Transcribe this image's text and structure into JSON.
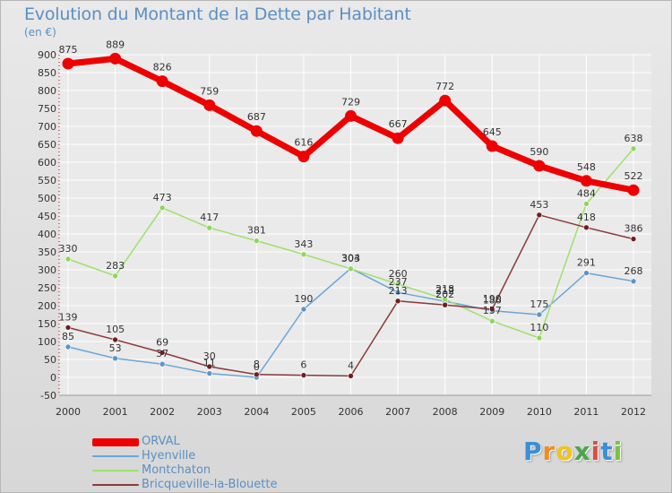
{
  "header": {
    "title": "Evolution du Montant de la Dette par Habitant",
    "unit": "(en €)"
  },
  "logo_text": "Proxiti",
  "chart_data": {
    "type": "line",
    "title": "Evolution du Montant de la Dette par Habitant",
    "subtitle": "(en €)",
    "xlabel": "",
    "ylabel": "",
    "x": [
      "2000",
      "2001",
      "2002",
      "2003",
      "2004",
      "2005",
      "2006",
      "2007",
      "2008",
      "2009",
      "2010",
      "2011",
      "2012"
    ],
    "ylim": [
      -50,
      900
    ],
    "yticks": [
      -50,
      0,
      50,
      100,
      150,
      200,
      250,
      300,
      350,
      400,
      450,
      500,
      550,
      600,
      650,
      700,
      750,
      800,
      850,
      900
    ],
    "grid": true,
    "legend_position": "bottom-left",
    "series": [
      {
        "name": "ORVAL",
        "color": "#ee0000",
        "point_color": "#ee0000",
        "values": [
          875,
          889,
          826,
          759,
          687,
          616,
          729,
          667,
          772,
          645,
          590,
          548,
          522
        ]
      },
      {
        "name": "Hyenville",
        "color": "#6aa6d8",
        "point_color": "#5b95c8",
        "values": [
          85,
          53,
          37,
          11,
          0,
          190,
          304,
          237,
          212,
          186,
          175,
          291,
          268
        ]
      },
      {
        "name": "Montchaton",
        "color": "#9ee06a",
        "point_color": "#8fd65b",
        "values": [
          330,
          283,
          473,
          417,
          381,
          343,
          303,
          260,
          218,
          157,
          110,
          484,
          638
        ]
      },
      {
        "name": "Bricqueville-la-Blouette",
        "color": "#8a3a3a",
        "point_color": "#6e1f1f",
        "values": [
          139,
          105,
          69,
          30,
          8,
          6,
          4,
          213,
          202,
          190,
          453,
          418,
          386
        ]
      }
    ]
  }
}
